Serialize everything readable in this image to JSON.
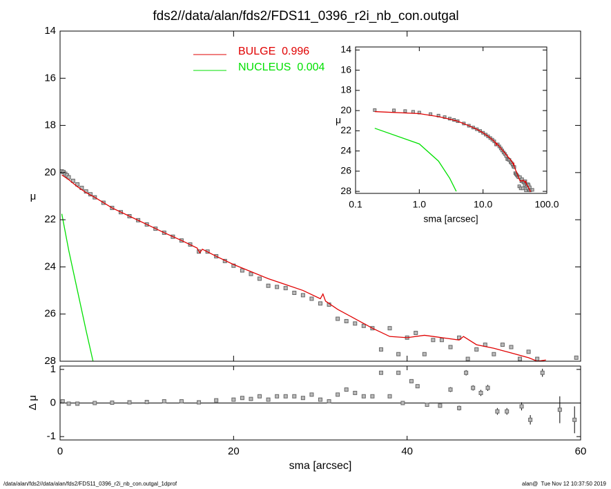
{
  "footer_left": "/data/alan/fds2//data/alan/fds2/FDS11_0396_r2i_nb_con.outgal_1dprof",
  "footer_right": "alan@  Tue Nov 12 10:37:50 2019",
  "chart_data": [
    {
      "type": "scatter",
      "title": "fds2//data/alan/fds2/FDS11_0396_r2i_nb_con.outgal",
      "ylabel": "μ",
      "xlim": [
        0,
        60
      ],
      "xticks": [
        0,
        20,
        40,
        60
      ],
      "ylim": [
        28,
        14
      ],
      "yticks": [
        14,
        16,
        18,
        20,
        22,
        24,
        26,
        28
      ],
      "series": [
        {
          "mode": "markers",
          "color": "#666666",
          "x": [
            0.2,
            0.4,
            0.6,
            0.8,
            1,
            1.5,
            2,
            2.5,
            3,
            3.5,
            4,
            5,
            6,
            7,
            8,
            9,
            10,
            11,
            12,
            13,
            14,
            15,
            16,
            17,
            18,
            19,
            20,
            21,
            22,
            23,
            24,
            25,
            26,
            27,
            28,
            29,
            30,
            31,
            32,
            33,
            34,
            35,
            36,
            37,
            38,
            39,
            40,
            41,
            42,
            43,
            44,
            45,
            46,
            47,
            48,
            49,
            50,
            51,
            52,
            53,
            54,
            55,
            59.5
          ],
          "values": [
            19.95,
            19.98,
            20.05,
            20.12,
            20.2,
            20.35,
            20.5,
            20.65,
            20.8,
            20.92,
            21.05,
            21.28,
            21.5,
            21.68,
            21.85,
            22.02,
            22.2,
            22.38,
            22.55,
            22.72,
            22.88,
            23.05,
            23.35,
            23.35,
            23.55,
            23.75,
            23.95,
            24.15,
            24.3,
            24.5,
            24.8,
            24.85,
            24.9,
            25.1,
            25.2,
            25.35,
            25.55,
            25.6,
            26.2,
            26.3,
            26.4,
            26.5,
            26.6,
            27.5,
            26.6,
            27.7,
            27.0,
            26.8,
            27.7,
            27.1,
            27.1,
            27.4,
            27.0,
            27.9,
            27.5,
            27.3,
            27.7,
            27.3,
            27.4,
            27.9,
            27.6,
            27.9,
            27.85
          ]
        },
        {
          "mode": "lines",
          "name": "BULGE  0.996",
          "color": "#e00000",
          "x": [
            0.2,
            1,
            2,
            3,
            4,
            6,
            8,
            10,
            12,
            14,
            15.8,
            16.1,
            16.4,
            18,
            20,
            22,
            24,
            26,
            28,
            30,
            30.3,
            30.6,
            32,
            34,
            36,
            38,
            40,
            42,
            44,
            46,
            46.5,
            48,
            50,
            52,
            54,
            55,
            56
          ],
          "values": [
            20.1,
            20.3,
            20.6,
            20.85,
            21.05,
            21.5,
            21.85,
            22.2,
            22.55,
            22.88,
            23.2,
            23.4,
            23.25,
            23.55,
            23.9,
            24.2,
            24.5,
            24.75,
            25.0,
            25.35,
            25.15,
            25.45,
            25.8,
            26.2,
            26.6,
            26.95,
            27.0,
            26.9,
            27.0,
            27.1,
            26.95,
            27.3,
            27.45,
            27.65,
            27.85,
            28.0,
            27.95
          ]
        },
        {
          "mode": "lines",
          "name": "NUCLEUS  0.004",
          "color": "#00e000",
          "x": [
            0.2,
            1,
            2,
            3,
            3.8
          ],
          "values": [
            21.75,
            23.3,
            25.0,
            26.7,
            28.0
          ]
        }
      ]
    },
    {
      "type": "residual",
      "xlabel": "sma [arcsec]",
      "ylabel": "Δ μ",
      "xlim": [
        0,
        60
      ],
      "xticks": [
        0,
        20,
        40,
        60
      ],
      "ylim": [
        -1.1,
        1.1
      ],
      "yticks": [
        1,
        0,
        -1
      ],
      "color": "#666666",
      "x": [
        0.3,
        1,
        2,
        4,
        6,
        8,
        10,
        12,
        14,
        16,
        18,
        20,
        21,
        22,
        23,
        24,
        25,
        26,
        27,
        28,
        29,
        30,
        31,
        32,
        33,
        34,
        35,
        36,
        37,
        38,
        39,
        39.5,
        40.5,
        41.2,
        42.3,
        43.8,
        45,
        46,
        46.8,
        47.6,
        48.5,
        49.3,
        50.4,
        51.5,
        53.2,
        54.2,
        55.6,
        57.6,
        59.3
      ],
      "values": [
        0.05,
        -0.02,
        -0.02,
        0,
        0.01,
        0.02,
        0.03,
        0.05,
        0.05,
        0.02,
        0.08,
        0.1,
        0.15,
        0.12,
        0.2,
        0.1,
        0.2,
        0.2,
        0.2,
        0.15,
        0.25,
        0.1,
        0.05,
        0.25,
        0.4,
        0.3,
        0.2,
        0.2,
        0.9,
        0.2,
        0.9,
        0,
        0.65,
        0.5,
        -0.05,
        -0.08,
        0.4,
        -0.15,
        0.9,
        0.45,
        0.3,
        0.45,
        -0.25,
        -0.25,
        -0.1,
        -0.5,
        0.9,
        -0.2,
        -0.5
      ],
      "errors": [
        0.01,
        0.01,
        0.01,
        0.01,
        0.01,
        0.01,
        0.01,
        0.01,
        0.01,
        0.01,
        0.01,
        0.01,
        0.01,
        0.01,
        0.01,
        0.01,
        0.01,
        0.01,
        0.01,
        0.01,
        0.02,
        0.02,
        0.02,
        0.02,
        0.02,
        0.02,
        0.03,
        0.03,
        0.03,
        0.03,
        0.03,
        0.03,
        0.04,
        0.04,
        0.05,
        0.06,
        0.07,
        0.07,
        0.08,
        0.08,
        0.09,
        0.09,
        0.1,
        0.1,
        0.12,
        0.14,
        0.12,
        0.4,
        0.4
      ]
    },
    {
      "type": "inset",
      "xlabel": "sma [arcsec]",
      "ylabel": "μ",
      "xlog": true,
      "xlim": [
        0.1,
        100
      ],
      "xticks": [
        0.1,
        {
          "value": 1,
          "label": "1.0"
        },
        {
          "value": 10,
          "label": "10.0"
        },
        {
          "value": 100,
          "label": "100.0"
        }
      ],
      "ylim": [
        28.2,
        13.7
      ],
      "yticks": [
        14,
        16,
        18,
        20,
        22,
        24,
        26,
        28
      ]
    }
  ]
}
